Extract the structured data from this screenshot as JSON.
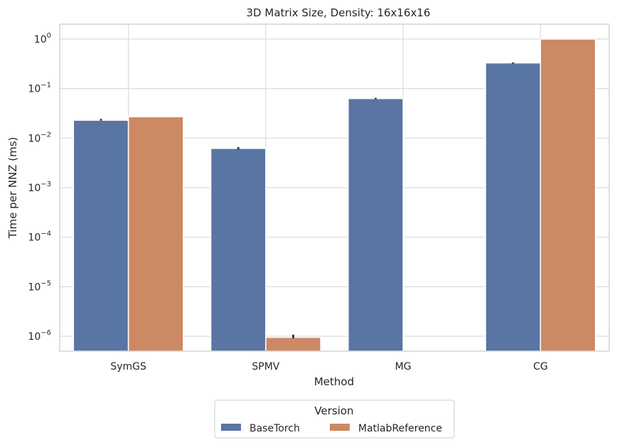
{
  "chart_data": {
    "type": "bar",
    "title": "3D Matrix Size, Density: 16x16x16",
    "xlabel": "Method",
    "ylabel": "Time per NNZ (ms)",
    "yscale": "log",
    "ylim": [
      5e-07,
      2
    ],
    "grid": true,
    "categories": [
      "SymGS",
      "SPMV",
      "MG",
      "CG"
    ],
    "y_ticks": [
      {
        "value": 1e-06,
        "base": "10",
        "exp": "−6"
      },
      {
        "value": 1e-05,
        "base": "10",
        "exp": "−5"
      },
      {
        "value": 0.0001,
        "base": "10",
        "exp": "−4"
      },
      {
        "value": 0.001,
        "base": "10",
        "exp": "−3"
      },
      {
        "value": 0.01,
        "base": "10",
        "exp": "−2"
      },
      {
        "value": 0.1,
        "base": "10",
        "exp": "−1"
      },
      {
        "value": 1,
        "base": "10",
        "exp": "0"
      }
    ],
    "series": [
      {
        "name": "BaseTorch",
        "color": "#5875a4",
        "values": [
          0.023,
          0.0062,
          0.063,
          0.33
        ],
        "error_low": [
          0.0225,
          0.0058,
          0.061,
          0.32
        ],
        "error_high": [
          0.0245,
          0.0066,
          0.065,
          0.34
        ]
      },
      {
        "name": "MatlabReference",
        "color": "#cc8963",
        "values": [
          0.027,
          9.5e-07,
          null,
          1.0
        ],
        "error_low": [
          null,
          9e-07,
          null,
          null
        ],
        "error_high": [
          null,
          1.08e-06,
          null,
          null
        ]
      }
    ],
    "legend": {
      "title": "Version",
      "placement": "bottom-center",
      "entries": [
        "BaseTorch",
        "MatlabReference"
      ]
    }
  }
}
